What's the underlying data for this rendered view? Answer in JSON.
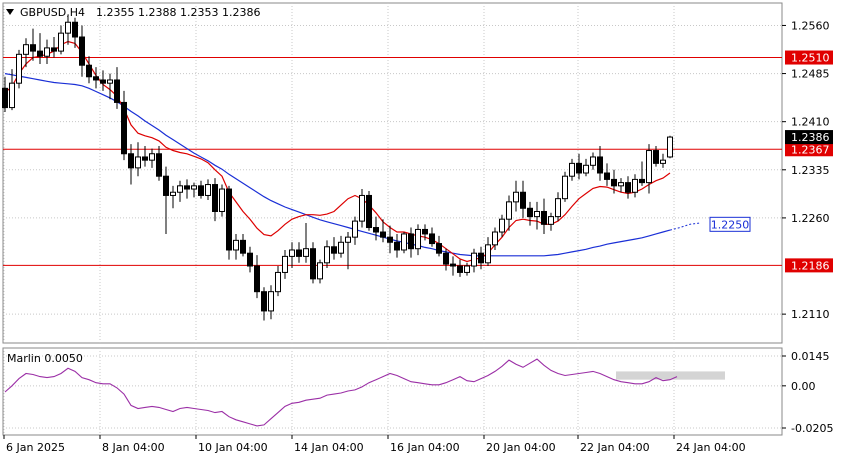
{
  "header": {
    "symbol_tf": "GBPUSD,H4",
    "ohlc": "1.2355 1.2388 1.2353 1.2386"
  },
  "colors": {
    "up": "#ffffff",
    "down": "#000000",
    "ma_fast": "#dd0000",
    "ma_slow": "#1a2fd6",
    "level_line": "#e00000",
    "price_tag": "#e00000",
    "oscillator": "#9b2fa6",
    "grid": "#c8c8c8"
  },
  "chart_data": [
    {
      "type": "candlestick",
      "title": "GBPUSD,H4",
      "ylim": [
        1.2065,
        1.2595
      ],
      "y_ticks": [
        "1.2560",
        "1.2485",
        "1.2410",
        "1.2335",
        "1.2260",
        "1.2110"
      ],
      "x_ticks": [
        "6 Jan 2025",
        "8 Jan 04:00",
        "10 Jan 04:00",
        "14 Jan 04:00",
        "16 Jan 04:00",
        "20 Jan 04:00",
        "22 Jan 04:00",
        "24 Jan 04:00"
      ],
      "candles": [
        [
          1.2462,
          1.248,
          1.2425,
          1.2432
        ],
        [
          1.2432,
          1.2492,
          1.2428,
          1.247
        ],
        [
          1.247,
          1.2522,
          1.2462,
          1.2515
        ],
        [
          1.2515,
          1.254,
          1.2495,
          1.253
        ],
        [
          1.253,
          1.2555,
          1.2505,
          1.252
        ],
        [
          1.252,
          1.2548,
          1.25,
          1.2512
        ],
        [
          1.2512,
          1.2538,
          1.25,
          1.2525
        ],
        [
          1.2525,
          1.2542,
          1.251,
          1.252
        ],
        [
          1.252,
          1.256,
          1.2515,
          1.2548
        ],
        [
          1.2548,
          1.2575,
          1.253,
          1.2565
        ],
        [
          1.2565,
          1.2572,
          1.2525,
          1.2542
        ],
        [
          1.2542,
          1.256,
          1.248,
          1.2498
        ],
        [
          1.2498,
          1.2512,
          1.247,
          1.248
        ],
        [
          1.248,
          1.2495,
          1.2462,
          1.2475
        ],
        [
          1.2475,
          1.249,
          1.2458,
          1.247
        ],
        [
          1.247,
          1.2485,
          1.2445,
          1.2475
        ],
        [
          1.2475,
          1.2495,
          1.243,
          1.244
        ],
        [
          1.244,
          1.2458,
          1.235,
          1.236
        ],
        [
          1.236,
          1.2375,
          1.2312,
          1.2338
        ],
        [
          1.2338,
          1.2378,
          1.2325,
          1.2355
        ],
        [
          1.2355,
          1.2372,
          1.234,
          1.235
        ],
        [
          1.235,
          1.2368,
          1.2338,
          1.236
        ],
        [
          1.236,
          1.2372,
          1.2318,
          1.2325
        ],
        [
          1.2325,
          1.234,
          1.2235,
          1.2295
        ],
        [
          1.2295,
          1.231,
          1.2275,
          1.23
        ],
        [
          1.23,
          1.2318,
          1.2285,
          1.231
        ],
        [
          1.231,
          1.232,
          1.229,
          1.2305
        ],
        [
          1.2305,
          1.2315,
          1.2292,
          1.231
        ],
        [
          1.231,
          1.2318,
          1.229,
          1.2295
        ],
        [
          1.2295,
          1.232,
          1.2288,
          1.2312
        ],
        [
          1.2312,
          1.2322,
          1.2255,
          1.227
        ],
        [
          1.227,
          1.2312,
          1.2262,
          1.2305
        ],
        [
          1.2305,
          1.231,
          1.2195,
          1.221
        ],
        [
          1.221,
          1.2235,
          1.2195,
          1.2225
        ],
        [
          1.2225,
          1.2235,
          1.22,
          1.2205
        ],
        [
          1.2205,
          1.2215,
          1.2175,
          1.2185
        ],
        [
          1.2185,
          1.2202,
          1.2135,
          1.2145
        ],
        [
          1.2145,
          1.2152,
          1.21,
          1.2115
        ],
        [
          1.2115,
          1.2155,
          1.2102,
          1.2145
        ],
        [
          1.2145,
          1.2185,
          1.2138,
          1.2175
        ],
        [
          1.2175,
          1.221,
          1.2165,
          1.22
        ],
        [
          1.22,
          1.2222,
          1.2182,
          1.221
        ],
        [
          1.221,
          1.2222,
          1.219,
          1.22
        ],
        [
          1.22,
          1.2252,
          1.219,
          1.2212
        ],
        [
          1.2212,
          1.2222,
          1.2158,
          1.2165
        ],
        [
          1.2165,
          1.2195,
          1.2158,
          1.219
        ],
        [
          1.219,
          1.2225,
          1.2182,
          1.2215
        ],
        [
          1.2215,
          1.223,
          1.2195,
          1.2205
        ],
        [
          1.2205,
          1.2232,
          1.2198,
          1.2222
        ],
        [
          1.2222,
          1.2238,
          1.218,
          1.223
        ],
        [
          1.223,
          1.2262,
          1.2218,
          1.2255
        ],
        [
          1.2255,
          1.2305,
          1.2245,
          1.2295
        ],
        [
          1.2295,
          1.2302,
          1.224,
          1.2245
        ],
        [
          1.2245,
          1.2262,
          1.2225,
          1.2238
        ],
        [
          1.2238,
          1.2258,
          1.2222,
          1.223
        ],
        [
          1.223,
          1.2248,
          1.2205,
          1.2222
        ],
        [
          1.2222,
          1.2235,
          1.2198,
          1.221
        ],
        [
          1.221,
          1.2238,
          1.2205,
          1.2235
        ],
        [
          1.2235,
          1.2245,
          1.2198,
          1.2212
        ],
        [
          1.2212,
          1.225,
          1.2202,
          1.2242
        ],
        [
          1.2242,
          1.225,
          1.2225,
          1.2235
        ],
        [
          1.2235,
          1.2245,
          1.2215,
          1.222
        ],
        [
          1.222,
          1.2232,
          1.22,
          1.2205
        ],
        [
          1.2205,
          1.2212,
          1.2178,
          1.2188
        ],
        [
          1.2188,
          1.22,
          1.217,
          1.2185
        ],
        [
          1.2185,
          1.2195,
          1.2168,
          1.2175
        ],
        [
          1.2175,
          1.219,
          1.217,
          1.2185
        ],
        [
          1.2185,
          1.2212,
          1.2175,
          1.2205
        ],
        [
          1.2205,
          1.2215,
          1.218,
          1.219
        ],
        [
          1.219,
          1.223,
          1.2185,
          1.2218
        ],
        [
          1.2218,
          1.2245,
          1.221,
          1.2238
        ],
        [
          1.2238,
          1.2265,
          1.223,
          1.2258
        ],
        [
          1.2258,
          1.2295,
          1.224,
          1.2285
        ],
        [
          1.2285,
          1.2318,
          1.227,
          1.23
        ],
        [
          1.23,
          1.2318,
          1.226,
          1.2275
        ],
        [
          1.2275,
          1.2285,
          1.2248,
          1.2262
        ],
        [
          1.2262,
          1.2285,
          1.2242,
          1.227
        ],
        [
          1.227,
          1.229,
          1.2235,
          1.225
        ],
        [
          1.225,
          1.2268,
          1.224,
          1.2262
        ],
        [
          1.2262,
          1.23,
          1.2255,
          1.229
        ],
        [
          1.229,
          1.2332,
          1.2285,
          1.2325
        ],
        [
          1.2325,
          1.2352,
          1.2318,
          1.2345
        ],
        [
          1.2345,
          1.236,
          1.232,
          1.233
        ],
        [
          1.233,
          1.2352,
          1.2325,
          1.2342
        ],
        [
          1.2342,
          1.2362,
          1.2335,
          1.2355
        ],
        [
          1.2355,
          1.2372,
          1.2318,
          1.233
        ],
        [
          1.233,
          1.2345,
          1.231,
          1.232
        ],
        [
          1.232,
          1.2335,
          1.2298,
          1.231
        ],
        [
          1.231,
          1.2322,
          1.23,
          1.2315
        ],
        [
          1.2315,
          1.2325,
          1.229,
          1.23
        ],
        [
          1.23,
          1.2328,
          1.2292,
          1.232
        ],
        [
          1.232,
          1.2348,
          1.231,
          1.2315
        ],
        [
          1.2315,
          1.2375,
          1.2298,
          1.2365
        ],
        [
          1.2365,
          1.2372,
          1.234,
          1.2345
        ],
        [
          1.2345,
          1.236,
          1.2338,
          1.235
        ],
        [
          1.2355,
          1.2388,
          1.2353,
          1.2386
        ]
      ],
      "ma_fast": [
        1.2455,
        1.2465,
        1.2485,
        1.25,
        1.251,
        1.2512,
        1.2515,
        1.252,
        1.253,
        1.2535,
        1.2532,
        1.2518,
        1.25,
        1.2482,
        1.2468,
        1.246,
        1.245,
        1.243,
        1.2405,
        1.2392,
        1.2388,
        1.2385,
        1.238,
        1.237,
        1.2365,
        1.2362,
        1.236,
        1.2356,
        1.2352,
        1.2346,
        1.2335,
        1.2325,
        1.23,
        1.2285,
        1.227,
        1.2258,
        1.2244,
        1.2234,
        1.2232,
        1.224,
        1.225,
        1.2258,
        1.2262,
        1.2265,
        1.2265,
        1.2264,
        1.2266,
        1.227,
        1.228,
        1.229,
        1.2295,
        1.229,
        1.228,
        1.2268,
        1.2254,
        1.2245,
        1.2238,
        1.2238,
        1.2235,
        1.2232,
        1.223,
        1.2226,
        1.222,
        1.2212,
        1.2204,
        1.2196,
        1.2192,
        1.2195,
        1.2198,
        1.2205,
        1.2218,
        1.223,
        1.2245,
        1.2256,
        1.2258,
        1.2256,
        1.2255,
        1.225,
        1.225,
        1.2255,
        1.2265,
        1.2278,
        1.229,
        1.2298,
        1.2306,
        1.2309,
        1.2308,
        1.2304,
        1.23,
        1.2298,
        1.23,
        1.2305,
        1.2312,
        1.2318,
        1.2322,
        1.233
      ],
      "ma_slow": [
        1.2485,
        1.2483,
        1.2481,
        1.2479,
        1.2477,
        1.2475,
        1.2473,
        1.2471,
        1.247,
        1.2469,
        1.2468,
        1.2466,
        1.2462,
        1.2457,
        1.2452,
        1.2447,
        1.2441,
        1.2434,
        1.2426,
        1.2419,
        1.2411,
        1.2404,
        1.2397,
        1.2389,
        1.2382,
        1.2375,
        1.2368,
        1.2361,
        1.2355,
        1.2349,
        1.2342,
        1.2336,
        1.2328,
        1.2321,
        1.2314,
        1.2307,
        1.23,
        1.2293,
        1.2287,
        1.2282,
        1.2277,
        1.2273,
        1.2269,
        1.2265,
        1.2261,
        1.2257,
        1.2254,
        1.2251,
        1.2248,
        1.2245,
        1.2242,
        1.2239,
        1.2236,
        1.2233,
        1.223,
        1.2227,
        1.2224,
        1.2222,
        1.2219,
        1.2217,
        1.2214,
        1.2212,
        1.2209,
        1.2207,
        1.2205,
        1.2203,
        1.2202,
        1.2201,
        1.2201,
        1.2201,
        1.2201,
        1.2201,
        1.2201,
        1.2201,
        1.2201,
        1.2201,
        1.2201,
        1.2201,
        1.2202,
        1.2203,
        1.2205,
        1.2207,
        1.2209,
        1.2211,
        1.2214,
        1.2216,
        1.2219,
        1.2221,
        1.2223,
        1.2225,
        1.2227,
        1.2229,
        1.2232,
        1.2235,
        1.2238,
        1.2241
      ],
      "ma_slow_projection": [
        1.2241,
        1.2245,
        1.225,
        1.2252
      ],
      "levels": [
        {
          "value": 1.251,
          "label": "1.2510"
        },
        {
          "value": 1.2367,
          "label": "1.2367"
        },
        {
          "value": 1.2186,
          "label": "1.2186"
        }
      ],
      "last_price": {
        "value": 1.2386,
        "label": "1.2386"
      },
      "projection_label": {
        "value": 1.225,
        "label": "1.2250"
      }
    },
    {
      "type": "line",
      "title": "Marlin 0.0050",
      "ylim": [
        -0.0205,
        0.0145
      ],
      "y_ticks": [
        "0.0145",
        "0.00",
        "-0.0205"
      ],
      "values": [
        -0.003,
        0.0,
        0.0035,
        0.006,
        0.0055,
        0.0045,
        0.004,
        0.0045,
        0.006,
        0.0085,
        0.007,
        0.004,
        0.003,
        0.0015,
        0.001,
        0.001,
        -0.001,
        -0.004,
        -0.0095,
        -0.011,
        -0.0105,
        -0.01,
        -0.0105,
        -0.0115,
        -0.0125,
        -0.011,
        -0.0105,
        -0.011,
        -0.0115,
        -0.012,
        -0.013,
        -0.0125,
        -0.015,
        -0.0165,
        -0.0175,
        -0.0185,
        -0.0195,
        -0.019,
        -0.016,
        -0.013,
        -0.01,
        -0.0085,
        -0.008,
        -0.007,
        -0.0065,
        -0.006,
        -0.0045,
        -0.004,
        -0.0035,
        -0.0025,
        -0.002,
        -0.0005,
        0.0015,
        0.003,
        0.0045,
        0.006,
        0.005,
        0.0035,
        0.002,
        0.0015,
        0.001,
        0.0005,
        0.0005,
        0.0015,
        0.003,
        0.0045,
        0.0025,
        0.002,
        0.0035,
        0.005,
        0.007,
        0.0095,
        0.0125,
        0.0105,
        0.009,
        0.011,
        0.013,
        0.01,
        0.0075,
        0.006,
        0.005,
        0.0055,
        0.006,
        0.0065,
        0.007,
        0.006,
        0.0045,
        0.003,
        0.002,
        0.0015,
        0.001,
        0.001,
        0.002,
        0.004,
        0.0025,
        0.003,
        0.0045
      ],
      "shaded_band": [
        0.003,
        0.007
      ]
    }
  ]
}
